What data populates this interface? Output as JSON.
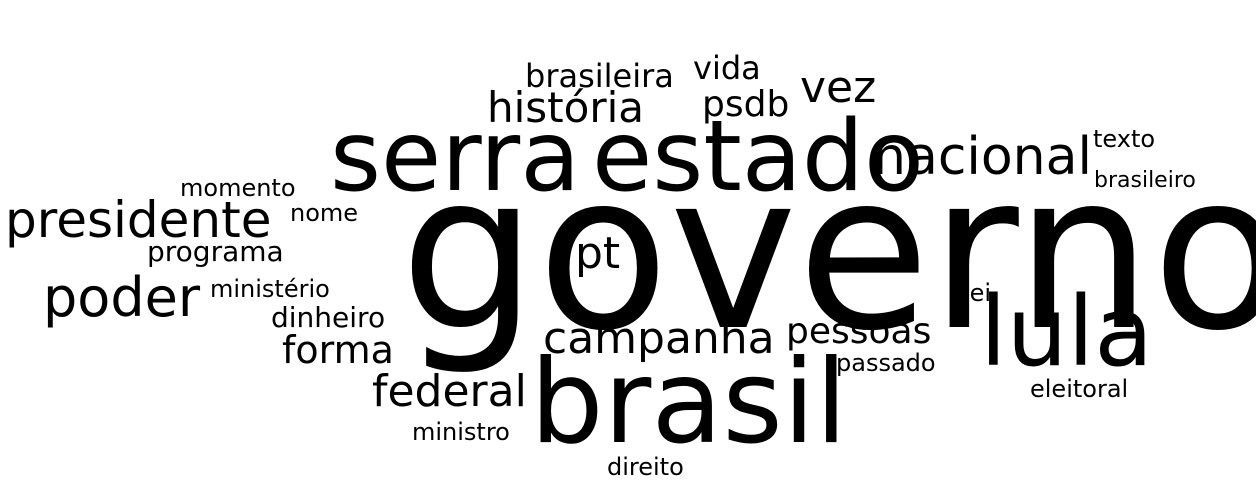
{
  "cloud": {
    "text_color": "#000000",
    "background_color": "#ffffff",
    "words": [
      {
        "id": "governo",
        "text": "governo"
      },
      {
        "id": "serra",
        "text": "serra"
      },
      {
        "id": "estado",
        "text": "estado"
      },
      {
        "id": "brasil",
        "text": "brasil"
      },
      {
        "id": "lula",
        "text": "lula"
      },
      {
        "id": "nacional",
        "text": "nacional"
      },
      {
        "id": "presidente",
        "text": "presidente"
      },
      {
        "id": "poder",
        "text": "poder"
      },
      {
        "id": "historia",
        "text": "história"
      },
      {
        "id": "campanha",
        "text": "campanha"
      },
      {
        "id": "federal",
        "text": "federal"
      },
      {
        "id": "vez",
        "text": "vez"
      },
      {
        "id": "pt",
        "text": "pt"
      },
      {
        "id": "forma",
        "text": "forma"
      },
      {
        "id": "pessoas",
        "text": "pessoas"
      },
      {
        "id": "psdb",
        "text": "psdb"
      },
      {
        "id": "brasileira",
        "text": "brasileira"
      },
      {
        "id": "vida",
        "text": "vida"
      },
      {
        "id": "programa",
        "text": "programa"
      },
      {
        "id": "dinheiro",
        "text": "dinheiro"
      },
      {
        "id": "momento",
        "text": "momento"
      },
      {
        "id": "nome",
        "text": "nome"
      },
      {
        "id": "ministerio",
        "text": "ministério"
      },
      {
        "id": "ministro",
        "text": "ministro"
      },
      {
        "id": "texto",
        "text": "texto"
      },
      {
        "id": "brasileiro",
        "text": "brasileiro"
      },
      {
        "id": "lei",
        "text": "lei"
      },
      {
        "id": "passado",
        "text": "passado"
      },
      {
        "id": "eleitoral",
        "text": "eleitoral"
      },
      {
        "id": "direito",
        "text": "direito"
      }
    ]
  }
}
